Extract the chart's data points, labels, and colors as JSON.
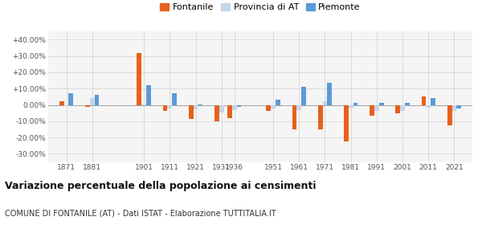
{
  "years": [
    1871,
    1881,
    1901,
    1911,
    1921,
    1931,
    1936,
    1951,
    1961,
    1971,
    1981,
    1991,
    2001,
    2011,
    2021
  ],
  "fontanile": [
    2.0,
    -1.0,
    32.0,
    -3.5,
    -8.5,
    -10.0,
    -8.0,
    -3.5,
    -15.0,
    -15.0,
    -22.5,
    -6.5,
    -5.0,
    5.0,
    -12.5
  ],
  "provincia_at": [
    -0.5,
    4.0,
    0.5,
    -2.0,
    -2.5,
    -4.5,
    -3.0,
    -2.0,
    -3.0,
    2.0,
    -1.5,
    -3.5,
    -3.5,
    -1.5,
    -3.5
  ],
  "piemonte": [
    7.0,
    6.0,
    12.0,
    7.0,
    0.5,
    0.0,
    -1.0,
    3.0,
    11.0,
    13.5,
    1.5,
    1.5,
    1.5,
    4.0,
    -2.0
  ],
  "color_fontanile": "#e8601c",
  "color_provincia": "#c5d5ea",
  "color_piemonte": "#5b9bd5",
  "title": "Variazione percentuale della popolazione ai censimenti",
  "subtitle": "COMUNE DI FONTANILE (AT) - Dati ISTAT - Elaborazione TUTTITALIA.IT",
  "ylim": [
    -35,
    45
  ],
  "yticks": [
    -30,
    -20,
    -10,
    0,
    10,
    20,
    30,
    40
  ],
  "ytick_labels": [
    "-30.00%",
    "-20.00%",
    "-10.00%",
    "0.00%",
    "+10.00%",
    "+20.00%",
    "+30.00%",
    "+40.00%"
  ],
  "legend_labels": [
    "Fontanile",
    "Provincia di AT",
    "Piemonte"
  ],
  "background_color": "#f5f5f5"
}
